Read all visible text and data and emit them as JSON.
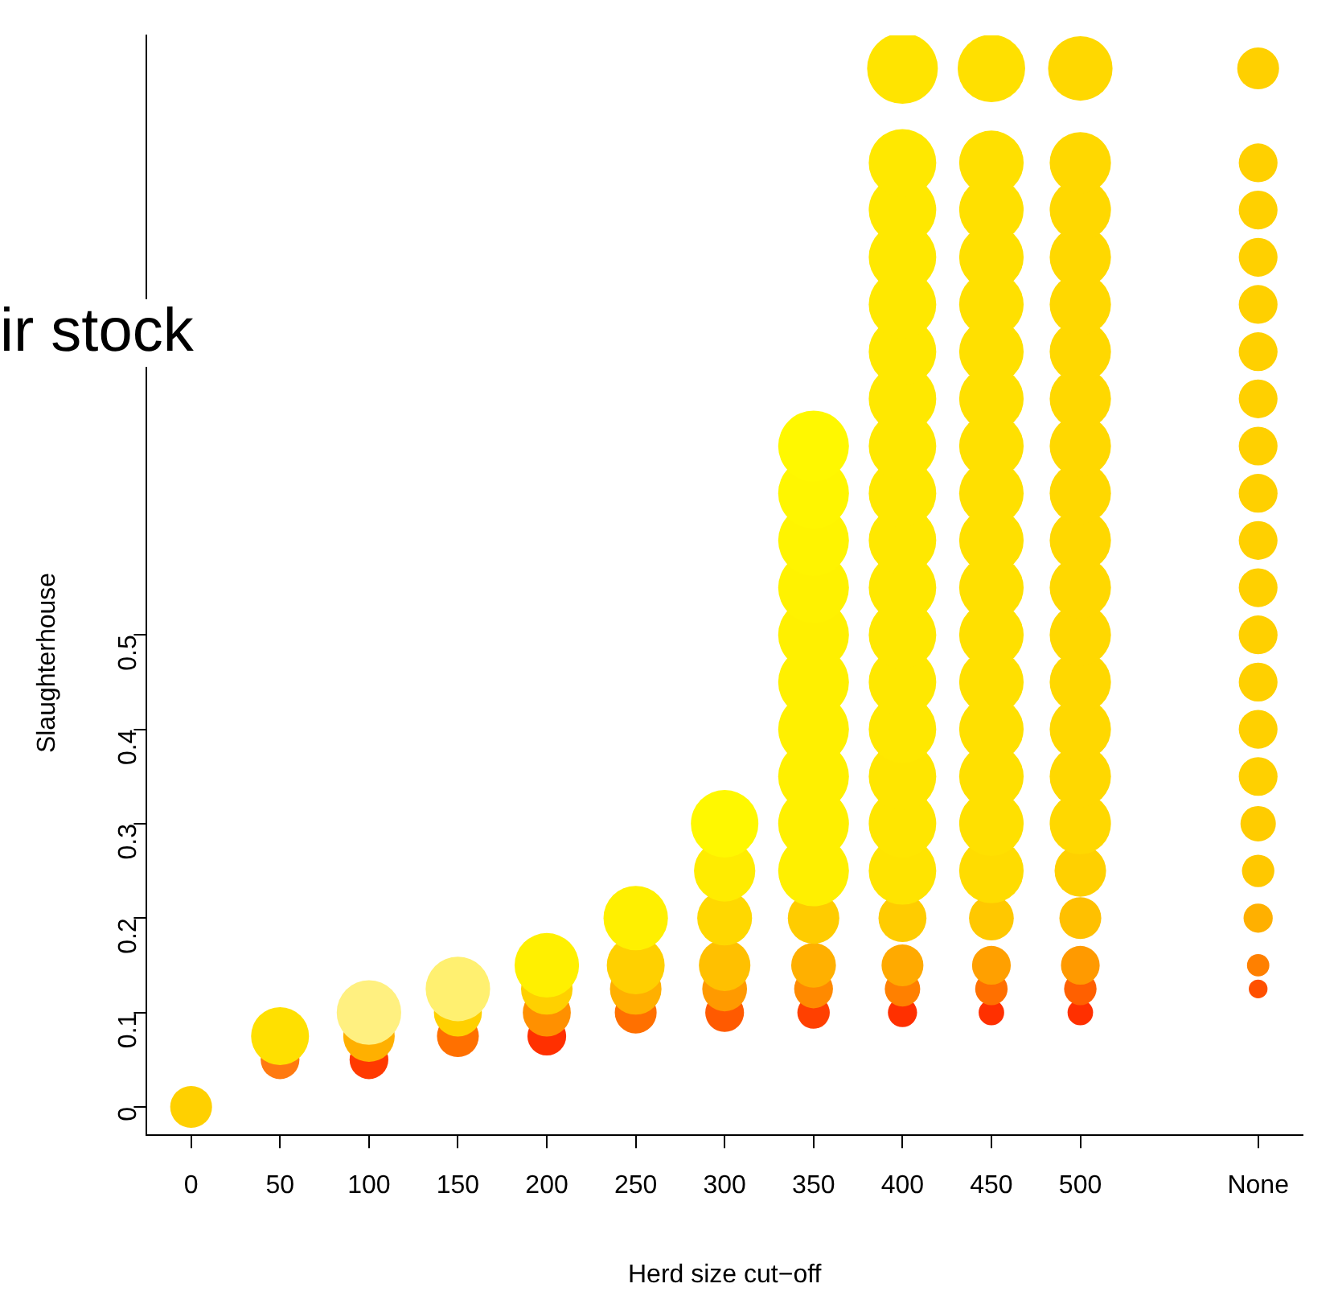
{
  "chart_data": {
    "type": "bubble",
    "title": "ir stock",
    "xlabel": "Herd size cut−off",
    "ylabel": "Slaughterhouse",
    "categories": [
      "0",
      "50",
      "100",
      "150",
      "200",
      "250",
      "300",
      "350",
      "400",
      "450",
      "500",
      null,
      "None"
    ],
    "ylim": [
      -0.03,
      1.135
    ],
    "yticks": [
      0,
      0.1,
      0.2,
      0.3,
      0.4,
      0.5
    ],
    "grid": false,
    "legend": false,
    "series": [
      {
        "x": [
          "0",
          "50",
          "50",
          "100",
          "100",
          "100",
          "150",
          "150",
          "150",
          "200",
          "200",
          "200",
          "200",
          "250",
          "250",
          "250",
          "250",
          "300",
          "300",
          "300",
          "300",
          "300",
          "300"
        ],
        "values": [
          0,
          0.05,
          0.075,
          0.05,
          0.075,
          0.1,
          0.075,
          0.1,
          0.125,
          0.075,
          0.1,
          0.125,
          0.15,
          0.1,
          0.125,
          0.15,
          0.2,
          0.1,
          0.125,
          0.15,
          0.2,
          0.25,
          0.3
        ],
        "sizes": [
          0.35,
          0.3,
          0.67,
          0.3,
          0.53,
          0.83,
          0.35,
          0.46,
          0.83,
          0.3,
          0.46,
          0.53,
          0.83,
          0.35,
          0.53,
          0.67,
          0.83,
          0.3,
          0.4,
          0.53,
          0.6,
          0.75,
          0.91
        ],
        "colors": [
          "#ffd000",
          "#ff7a10",
          "#ffe000",
          "#ff3a00",
          "#ffb000",
          "#fff080",
          "#ff7000",
          "#ffd000",
          "#fff070",
          "#ff3000",
          "#ff9000",
          "#ffd000",
          "#fff000",
          "#ff7000",
          "#ffb000",
          "#ffd000",
          "#fff000",
          "#ff5a00",
          "#ff9a00",
          "#ffc000",
          "#ffd800",
          "#ffec00",
          "#fff800"
        ]
      },
      {
        "x": [
          "350",
          "350",
          "350",
          "350",
          "350",
          "350",
          "350",
          "350",
          "350",
          "350",
          "350",
          "350",
          "350",
          "350"
        ],
        "values": [
          0.1,
          0.125,
          0.15,
          0.2,
          0.25,
          0.3,
          0.35,
          0.4,
          0.45,
          0.5,
          0.55,
          0.6,
          0.65,
          0.7
        ],
        "sizes": [
          0.21,
          0.3,
          0.4,
          0.53,
          1,
          1,
          1,
          1,
          1,
          1,
          1,
          1,
          1,
          1
        ],
        "colors": [
          "#ff4000",
          "#ff8a00",
          "#ffb000",
          "#ffcc00",
          "#fff000",
          "#fff000",
          "#fff000",
          "#fff000",
          "#fff000",
          "#fff000",
          "#fff200",
          "#fff400",
          "#fff600",
          "#fff800"
        ]
      },
      {
        "x": [
          "400",
          "400",
          "400",
          "400",
          "400",
          "400",
          "400",
          "400",
          "400",
          "400",
          "400",
          "400",
          "400",
          "400",
          "400",
          "400",
          "400",
          "400",
          "400",
          "400",
          "400"
        ],
        "values": [
          0.1,
          0.125,
          0.15,
          0.2,
          0.25,
          0.3,
          0.35,
          0.4,
          0.45,
          0.5,
          0.55,
          0.6,
          0.65,
          0.7,
          0.75,
          0.8,
          0.85,
          0.9,
          0.95,
          1.0,
          1.1
        ],
        "sizes": [
          0.17,
          0.25,
          0.35,
          0.46,
          0.91,
          0.91,
          0.91,
          0.91,
          0.91,
          0.91,
          0.91,
          0.91,
          0.91,
          0.91,
          0.91,
          0.91,
          0.91,
          0.91,
          0.91,
          0.91,
          1
        ],
        "colors": [
          "#ff3000",
          "#ff8000",
          "#ffaa00",
          "#ffcc00",
          "#ffe400",
          "#ffe600",
          "#ffe600",
          "#ffe800",
          "#ffe800",
          "#ffe800",
          "#ffe800",
          "#ffe800",
          "#ffe800",
          "#ffe800",
          "#ffe800",
          "#ffe800",
          "#ffe800",
          "#ffe800",
          "#ffe800",
          "#ffe800",
          "#ffe400"
        ]
      },
      {
        "x": [
          "450",
          "450",
          "450",
          "450",
          "450",
          "450",
          "450",
          "450",
          "450",
          "450",
          "450",
          "450",
          "450",
          "450",
          "450",
          "450",
          "450",
          "450",
          "450",
          "450",
          "450"
        ],
        "values": [
          0.1,
          0.125,
          0.15,
          0.2,
          0.25,
          0.3,
          0.35,
          0.4,
          0.45,
          0.5,
          0.55,
          0.6,
          0.65,
          0.7,
          0.75,
          0.8,
          0.85,
          0.9,
          0.95,
          1.0,
          1.1
        ],
        "sizes": [
          0.13,
          0.21,
          0.3,
          0.4,
          0.83,
          0.83,
          0.83,
          0.83,
          0.83,
          0.83,
          0.83,
          0.83,
          0.83,
          0.83,
          0.83,
          0.83,
          0.83,
          0.83,
          0.83,
          0.83,
          0.91
        ],
        "colors": [
          "#ff3000",
          "#ff7000",
          "#ffa000",
          "#ffc800",
          "#ffdc00",
          "#ffe000",
          "#ffe000",
          "#ffe000",
          "#ffe000",
          "#ffe000",
          "#ffe000",
          "#ffe000",
          "#ffe000",
          "#ffe000",
          "#ffe000",
          "#ffe000",
          "#ffe000",
          "#ffe000",
          "#ffe000",
          "#ffe000",
          "#ffe000"
        ]
      },
      {
        "x": [
          "500",
          "500",
          "500",
          "500",
          "500",
          "500",
          "500",
          "500",
          "500",
          "500",
          "500",
          "500",
          "500",
          "500",
          "500",
          "500",
          "500",
          "500",
          "500",
          "500",
          "500"
        ],
        "values": [
          0.1,
          0.125,
          0.15,
          0.2,
          0.25,
          0.3,
          0.35,
          0.4,
          0.45,
          0.5,
          0.55,
          0.6,
          0.65,
          0.7,
          0.75,
          0.8,
          0.85,
          0.9,
          0.95,
          1.0,
          1.1
        ],
        "sizes": [
          0.13,
          0.21,
          0.3,
          0.35,
          0.53,
          0.75,
          0.75,
          0.75,
          0.75,
          0.75,
          0.75,
          0.75,
          0.75,
          0.75,
          0.75,
          0.75,
          0.75,
          0.75,
          0.75,
          0.75,
          0.83
        ],
        "colors": [
          "#ff3000",
          "#ff6000",
          "#ff9a00",
          "#ffc000",
          "#ffd000",
          "#ffd800",
          "#ffd800",
          "#ffd800",
          "#ffd800",
          "#ffd800",
          "#ffd800",
          "#ffd800",
          "#ffd800",
          "#ffd800",
          "#ffd800",
          "#ffd800",
          "#ffd800",
          "#ffd800",
          "#ffd800",
          "#ffd800",
          "#ffd800"
        ]
      },
      {
        "x": [
          "None",
          "None",
          "None",
          "None",
          "None",
          "None",
          "None",
          "None",
          "None",
          "None",
          "None",
          "None",
          "None",
          "None",
          "None",
          "None",
          "None",
          "None",
          "None",
          "None"
        ],
        "values": [
          0.125,
          0.15,
          0.2,
          0.25,
          0.3,
          0.35,
          0.4,
          0.45,
          0.5,
          0.55,
          0.6,
          0.65,
          0.7,
          0.75,
          0.8,
          0.85,
          0.9,
          0.95,
          1.0,
          1.1
        ],
        "sizes": [
          0.07,
          0.1,
          0.17,
          0.21,
          0.25,
          0.3,
          0.3,
          0.3,
          0.3,
          0.3,
          0.3,
          0.3,
          0.3,
          0.3,
          0.3,
          0.3,
          0.3,
          0.3,
          0.3,
          0.35
        ],
        "colors": [
          "#ff5000",
          "#ff8000",
          "#ffb000",
          "#ffc800",
          "#ffcc00",
          "#ffd000",
          "#ffd000",
          "#ffd000",
          "#ffd000",
          "#ffd000",
          "#ffd000",
          "#ffd000",
          "#ffd000",
          "#ffd000",
          "#ffd000",
          "#ffd000",
          "#ffd000",
          "#ffd000",
          "#ffd000",
          "#ffd000"
        ]
      }
    ]
  }
}
